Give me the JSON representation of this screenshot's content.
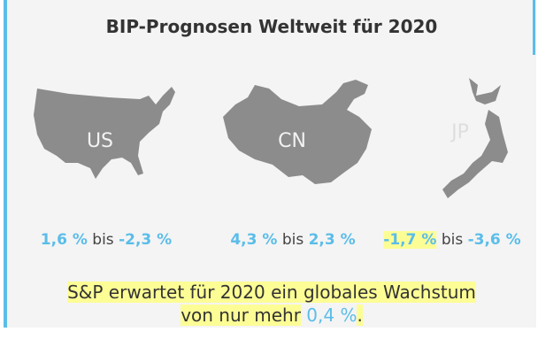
{
  "title": "BIP-Prognosen Weltweit für 2020",
  "regions": [
    {
      "label": "US",
      "from": "1,6 %",
      "separator": "bis",
      "to": "-2,3 %"
    },
    {
      "label": "CN",
      "from": "4,3 %",
      "separator": "bis",
      "to": "2,3 %"
    },
    {
      "label": "JP",
      "from": "-1,7 %",
      "separator": "bis",
      "to": "-3,6 %"
    }
  ],
  "summary": {
    "line1": "S&P erwartet für 2020 ein globales Wachstum",
    "line2": "von nur mehr",
    "value": "0,4 %",
    "end": "."
  }
}
